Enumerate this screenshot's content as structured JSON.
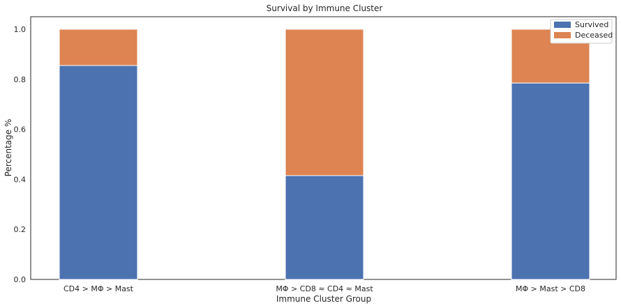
{
  "chart_data": {
    "type": "bar",
    "stacked": true,
    "title": "Survival by Immune Cluster",
    "xlabel": "Immune Cluster Group",
    "ylabel": "Percentage %",
    "categories": [
      "CD4 > MΦ > Mast",
      "MΦ > CD8 ≈ CD4 ≈ Mast",
      "MΦ > Mast > CD8"
    ],
    "series": [
      {
        "name": "Survived",
        "values": [
          0.855,
          0.415,
          0.785
        ],
        "color": "#4c72b0"
      },
      {
        "name": "Deceased",
        "values": [
          0.145,
          0.585,
          0.215
        ],
        "color": "#dd8452"
      }
    ],
    "ylim": [
      0,
      1.05
    ],
    "yticks": [
      "0.0",
      "0.2",
      "0.4",
      "0.6",
      "0.8",
      "1.0"
    ],
    "ytick_values": [
      0,
      0.2,
      0.4,
      0.6,
      0.8,
      1.0
    ],
    "grid": false,
    "legend": "top-right"
  }
}
